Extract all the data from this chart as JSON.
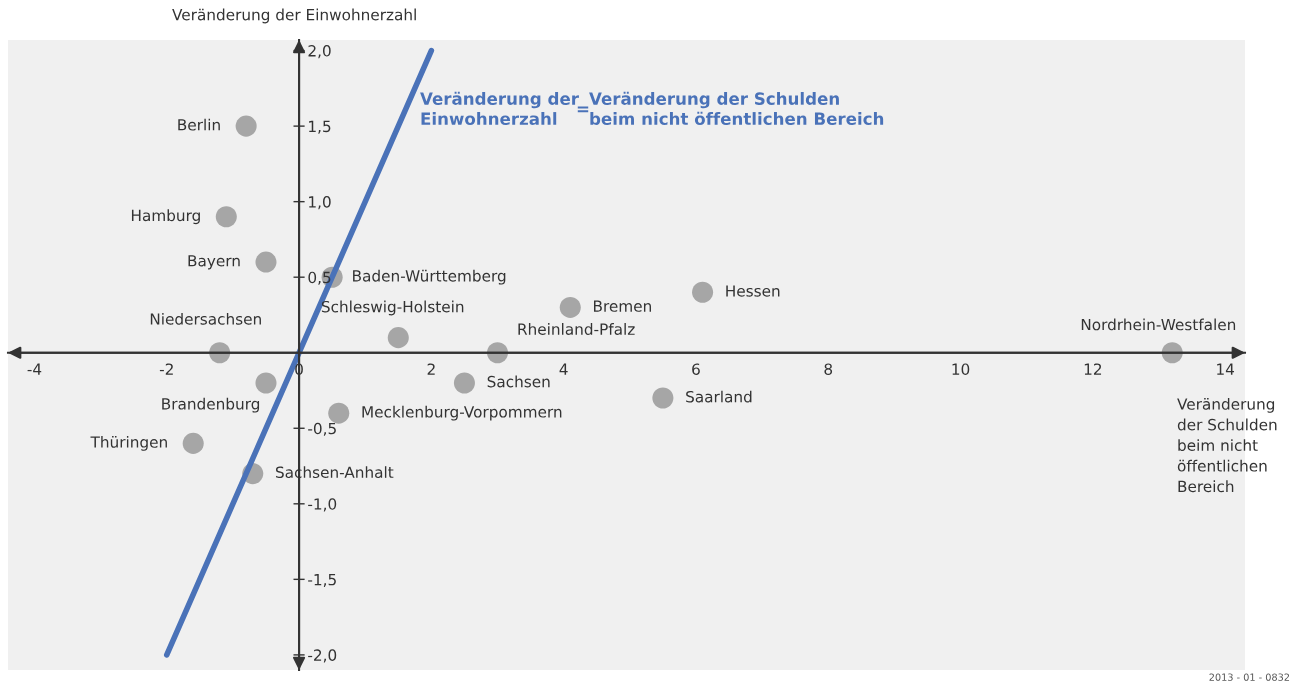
{
  "chart_data": {
    "type": "scatter",
    "xlabel": "Veränderung\nder Schulden\nbeim nicht\nöffentlichen\nBereich",
    "ylabel": "Veränderung der Einwohnerzahl",
    "xlim": [
      -4.4,
      14.3
    ],
    "ylim": [
      -2.1,
      2.07
    ],
    "xticks": [
      -4,
      -2,
      0,
      2,
      4,
      6,
      8,
      10,
      12,
      14
    ],
    "yticks": [
      {
        "value": -2.0,
        "label": "-2,0"
      },
      {
        "value": -1.5,
        "label": "-1,5"
      },
      {
        "value": -1.0,
        "label": "-1,0"
      },
      {
        "value": -0.5,
        "label": "-0,5"
      },
      {
        "value": 0.5,
        "label": "0,5"
      },
      {
        "value": 1.0,
        "label": "1,0"
      },
      {
        "value": 1.5,
        "label": "1,5"
      },
      {
        "value": 2.0,
        "label": "2,0"
      }
    ],
    "grid": false,
    "series": [
      {
        "marker": "circle",
        "color": "#a6a6a6",
        "x": [
          -0.8,
          -1.1,
          -0.5,
          0.5,
          -1.2,
          -0.5,
          -1.6,
          -0.7,
          0.6,
          1.5,
          3.0,
          2.5,
          4.1,
          5.5,
          6.1,
          13.2
        ],
        "values": [
          1.5,
          0.9,
          0.6,
          0.5,
          0.0,
          -0.2,
          -0.6,
          -0.8,
          -0.4,
          0.1,
          0.0,
          -0.2,
          0.3,
          -0.3,
          0.4,
          0.0
        ]
      },
      {
        "type": "line",
        "color": "#4a72b8",
        "x": [
          -2.0,
          2.0
        ],
        "values": [
          -2.0,
          2.0
        ]
      }
    ],
    "annotations": [
      {
        "text": "Berlin",
        "x": -0.8,
        "y": 1.5
      },
      {
        "text": "Hamburg",
        "x": -1.1,
        "y": 0.9
      },
      {
        "text": "Bayern",
        "x": -0.5,
        "y": 0.6
      },
      {
        "text": "Baden-Württemberg",
        "x": 0.5,
        "y": 0.5
      },
      {
        "text": "Niedersachsen",
        "x": -1.2,
        "y": 0.0
      },
      {
        "text": "Brandenburg",
        "x": -0.5,
        "y": -0.2
      },
      {
        "text": "Thüringen",
        "x": -1.6,
        "y": -0.6
      },
      {
        "text": "Sachsen-Anhalt",
        "x": -0.7,
        "y": -0.8
      },
      {
        "text": "Mecklenburg-Vorpommern",
        "x": 0.6,
        "y": -0.4
      },
      {
        "text": "Schleswig-Holstein",
        "x": 1.5,
        "y": 0.1
      },
      {
        "text": "Rheinland-Pfalz",
        "x": 3.0,
        "y": 0.0
      },
      {
        "text": "Sachsen",
        "x": 2.5,
        "y": -0.2
      },
      {
        "text": "Bremen",
        "x": 4.1,
        "y": 0.3
      },
      {
        "text": "Saarland",
        "x": 5.5,
        "y": -0.3
      },
      {
        "text": "Hessen",
        "x": 6.1,
        "y": 0.4
      },
      {
        "text": "Nordrhein-Westfalen",
        "x": 13.2,
        "y": 0.0
      },
      "Veränderung der\nEinwohnerzahl",
      "=",
      "Veränderung der Schulden\nbeim nicht öffentlichen Bereich",
      "2013 - 01 - 0832"
    ]
  }
}
